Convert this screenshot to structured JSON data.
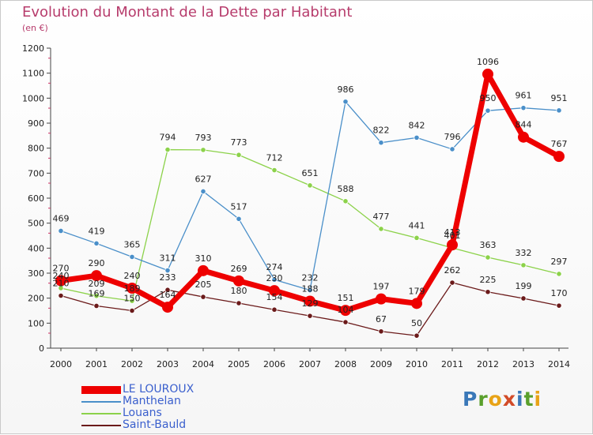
{
  "title": "Evolution du Montant de la Dette par Habitant",
  "subtitle": "(en €)",
  "logo": {
    "text": "Proxiti",
    "colors": [
      "#3a78b8",
      "#5aa02c",
      "#e8a317",
      "#d24b28",
      "#3a78b8",
      "#5aa02c",
      "#e8a317"
    ]
  },
  "chart_data": {
    "type": "line",
    "title": "Evolution du Montant de la Dette par Habitant",
    "ylabel": "(en €)",
    "xlabel": "",
    "ylim": [
      0,
      1200
    ],
    "yticks": [
      "0",
      "100",
      "200",
      "300",
      "400",
      "500",
      "600",
      "700",
      "800",
      "900",
      "1000",
      "1100",
      "1200"
    ],
    "x": [
      "2000",
      "2001",
      "2002",
      "2003",
      "2004",
      "2005",
      "2006",
      "2007",
      "2008",
      "2009",
      "2010",
      "2011",
      "2012",
      "2013",
      "2014"
    ],
    "series": [
      {
        "name": "LE LOUROUX",
        "color": "#ee0000",
        "values": [
          270,
          290,
          240,
          164,
          310,
          269,
          230,
          188,
          151,
          197,
          179,
          413,
          1096,
          844,
          767
        ],
        "labels": [
          "270",
          "290",
          "240",
          "164",
          "310",
          "269",
          "230",
          "188",
          "151",
          "197",
          "179",
          "413",
          "1096",
          "844",
          "767"
        ]
      },
      {
        "name": "Manthelan",
        "color": "#4a8fc9",
        "values": [
          469,
          419,
          365,
          311,
          627,
          517,
          274,
          232,
          986,
          822,
          842,
          796,
          950,
          961,
          951
        ],
        "labels": [
          "469",
          "419",
          "365",
          "311",
          "627",
          "517",
          "274",
          "232",
          "986",
          "822",
          "842",
          "796",
          "950",
          "961",
          "951"
        ]
      },
      {
        "name": "Louans",
        "color": "#8cd24a",
        "values": [
          240,
          209,
          189,
          794,
          793,
          773,
          712,
          651,
          588,
          477,
          441,
          401,
          363,
          332,
          297
        ],
        "labels": [
          "240",
          "209",
          "189",
          "794",
          "793",
          "773",
          "712",
          "651",
          "588",
          "477",
          "441",
          "401",
          "363",
          "332",
          "297"
        ]
      },
      {
        "name": "Saint-Bauld",
        "color": "#6b1a1a",
        "values": [
          210,
          169,
          150,
          233,
          205,
          180,
          154,
          129,
          104,
          67,
          50,
          262,
          225,
          199,
          170
        ],
        "labels": [
          "210",
          "169",
          "150",
          "233",
          "205",
          "180",
          "154",
          "129",
          "104",
          "67",
          "50",
          "262",
          "225",
          "199",
          "170"
        ]
      }
    ],
    "legend": "bottom-left",
    "grid": false
  }
}
